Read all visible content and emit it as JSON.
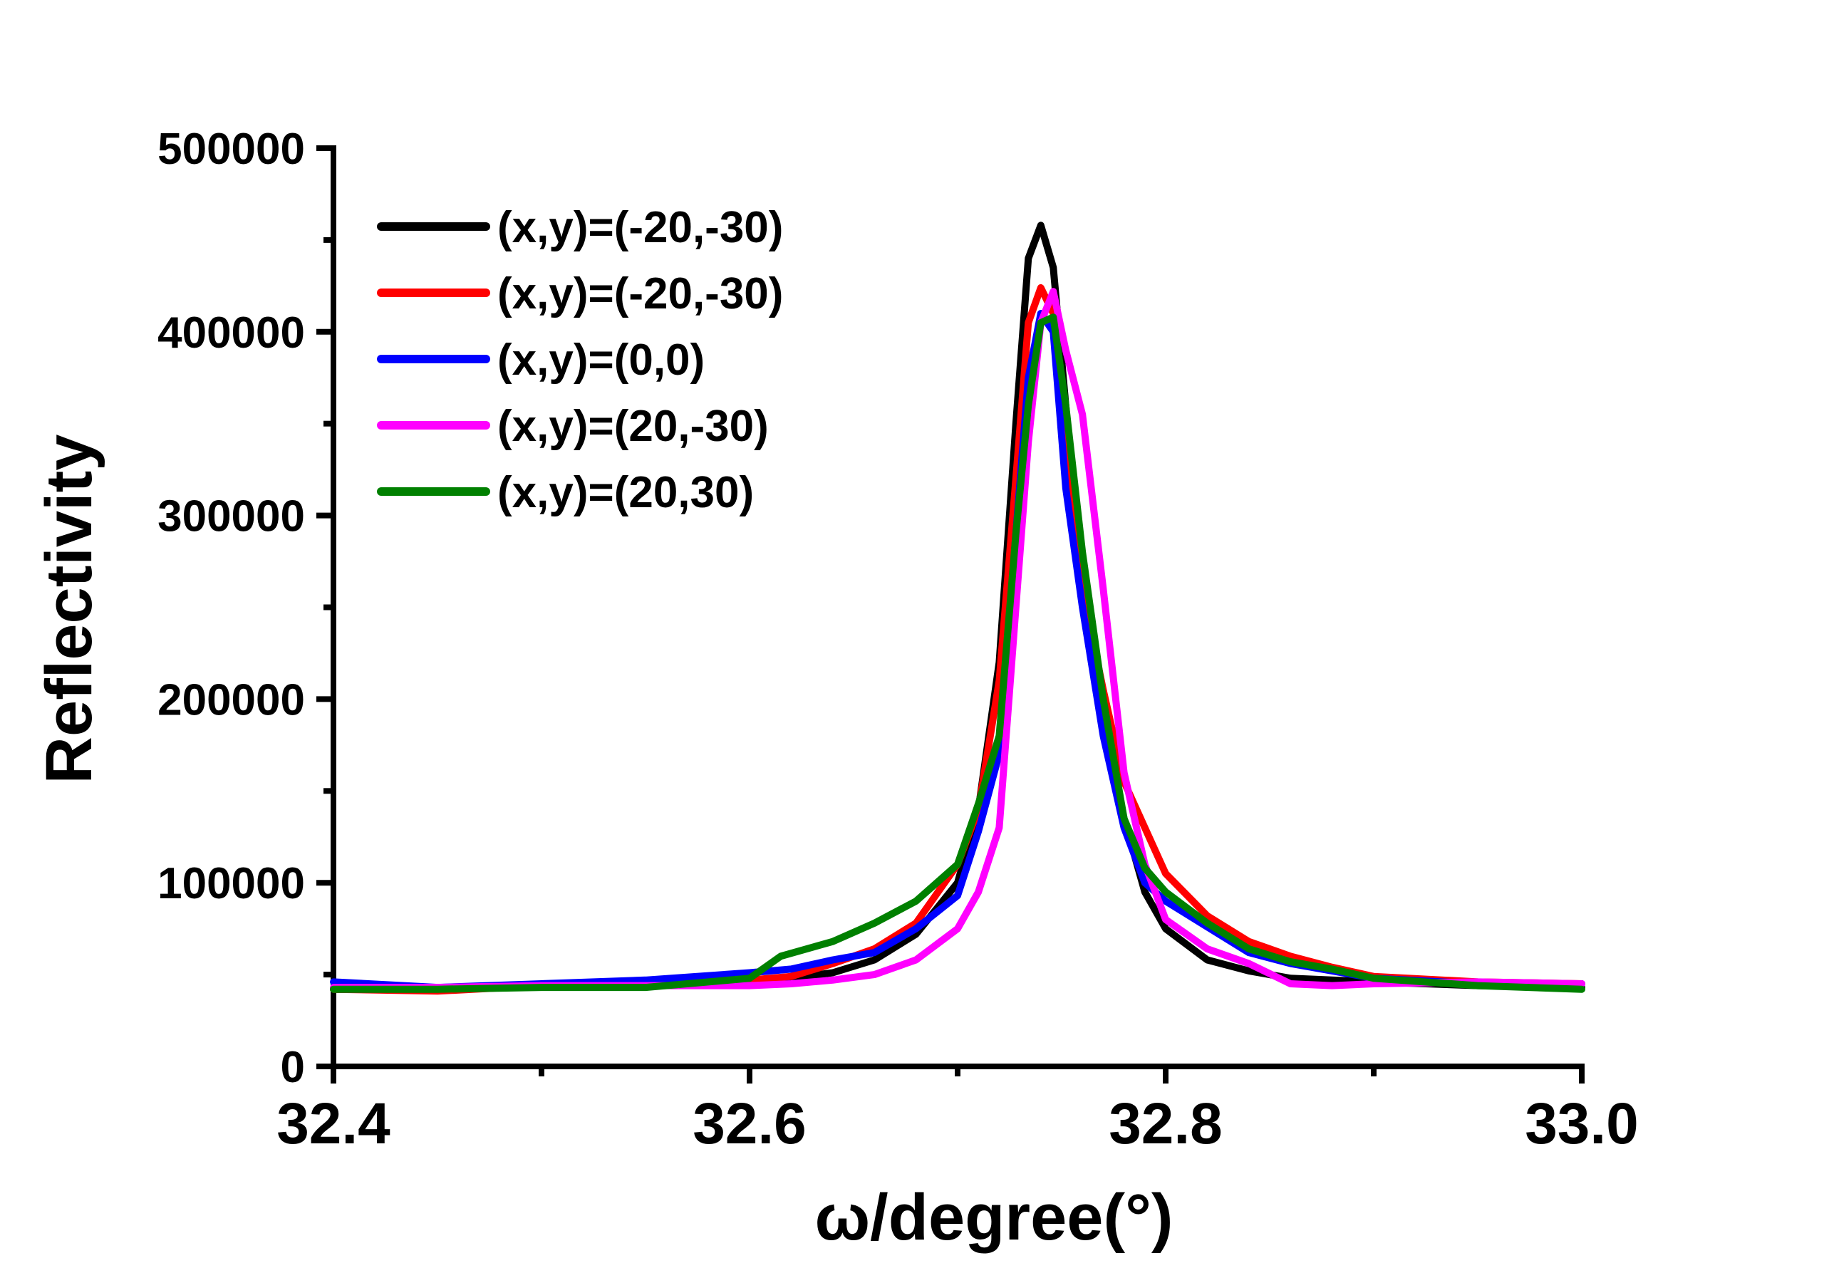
{
  "chart_data": {
    "type": "line",
    "xlabel": "ω/degree(°)",
    "ylabel": "Reflectivity",
    "xlim": [
      32.4,
      33.0
    ],
    "ylim": [
      0,
      500000
    ],
    "x_ticks": [
      "32.4",
      "32.6",
      "32.8",
      "33.0"
    ],
    "y_ticks": [
      "0",
      "100000",
      "200000",
      "300000",
      "400000",
      "500000"
    ],
    "grid": false,
    "legend_position": "top-left",
    "series": [
      {
        "name": "(x,y)=(-20,-30)",
        "color": "#000000",
        "x": [
          32.4,
          32.45,
          32.5,
          32.55,
          32.6,
          32.62,
          32.64,
          32.66,
          32.68,
          32.7,
          32.71,
          32.72,
          32.728,
          32.734,
          32.74,
          32.746,
          32.752,
          32.76,
          32.77,
          32.78,
          32.79,
          32.8,
          32.82,
          32.84,
          32.86,
          32.88,
          32.9,
          32.95,
          33.0
        ],
        "y": [
          42000,
          42000,
          44000,
          45000,
          47000,
          48000,
          51000,
          58000,
          72000,
          100000,
          140000,
          220000,
          350000,
          440000,
          458000,
          435000,
          360000,
          260000,
          190000,
          135000,
          95000,
          75000,
          58000,
          52000,
          48000,
          47000,
          46000,
          44000,
          43000
        ]
      },
      {
        "name": "(x,y)=(-20,-30)",
        "color": "#ff0000",
        "x": [
          32.4,
          32.45,
          32.5,
          32.55,
          32.6,
          32.62,
          32.64,
          32.66,
          32.68,
          32.7,
          32.71,
          32.72,
          32.728,
          32.734,
          32.74,
          32.746,
          32.752,
          32.76,
          32.77,
          32.78,
          32.79,
          32.8,
          32.82,
          32.84,
          32.86,
          32.88,
          32.9,
          32.95,
          33.0
        ],
        "y": [
          42000,
          41000,
          44000,
          44000,
          47000,
          49000,
          56000,
          64000,
          78000,
          110000,
          140000,
          210000,
          320000,
          405000,
          424000,
          410000,
          350000,
          260000,
          205000,
          155000,
          130000,
          105000,
          82000,
          68000,
          60000,
          54000,
          49000,
          46000,
          45000
        ]
      },
      {
        "name": "(x,y)=(0,0)",
        "color": "#0000ff",
        "x": [
          32.4,
          32.45,
          32.5,
          32.55,
          32.6,
          32.62,
          32.64,
          32.66,
          32.68,
          32.7,
          32.71,
          32.72,
          32.728,
          32.734,
          32.74,
          32.746,
          32.752,
          32.76,
          32.77,
          32.78,
          32.79,
          32.8,
          32.82,
          32.84,
          32.86,
          32.88,
          32.9,
          32.95,
          33.0
        ],
        "y": [
          46000,
          43000,
          45000,
          47000,
          51000,
          53000,
          58000,
          62000,
          75000,
          93000,
          128000,
          170000,
          290000,
          375000,
          410000,
          400000,
          315000,
          250000,
          180000,
          130000,
          100000,
          90000,
          76000,
          62000,
          56000,
          52000,
          48000,
          45000,
          45000
        ]
      },
      {
        "name": "(x,y)=(20,-30)",
        "color": "#ff00ff",
        "x": [
          32.4,
          32.45,
          32.5,
          32.55,
          32.6,
          32.62,
          32.64,
          32.66,
          32.68,
          32.7,
          32.71,
          32.72,
          32.728,
          32.734,
          32.74,
          32.746,
          32.752,
          32.76,
          32.77,
          32.78,
          32.79,
          32.8,
          32.82,
          32.84,
          32.86,
          32.88,
          32.9,
          32.95,
          33.0
        ],
        "y": [
          43000,
          43000,
          44000,
          44000,
          44000,
          45000,
          47000,
          50000,
          58000,
          75000,
          95000,
          130000,
          250000,
          340000,
          405000,
          422000,
          390000,
          355000,
          260000,
          160000,
          110000,
          80000,
          64000,
          56000,
          45000,
          44000,
          45000,
          46000,
          45000
        ]
      },
      {
        "name": "(x,y)=(20,30)",
        "color": "#008000",
        "x": [
          32.4,
          32.45,
          32.5,
          32.55,
          32.6,
          32.615,
          32.64,
          32.66,
          32.68,
          32.7,
          32.71,
          32.72,
          32.728,
          32.734,
          32.74,
          32.746,
          32.752,
          32.76,
          32.77,
          32.78,
          32.79,
          32.8,
          32.82,
          32.84,
          32.86,
          32.88,
          32.9,
          32.95,
          33.0
        ],
        "y": [
          42000,
          42000,
          43000,
          43000,
          48000,
          60000,
          68000,
          78000,
          90000,
          110000,
          143000,
          180000,
          290000,
          360000,
          405000,
          408000,
          360000,
          280000,
          200000,
          135000,
          108000,
          95000,
          78000,
          64000,
          57000,
          53000,
          48000,
          44000,
          42000
        ]
      }
    ]
  }
}
